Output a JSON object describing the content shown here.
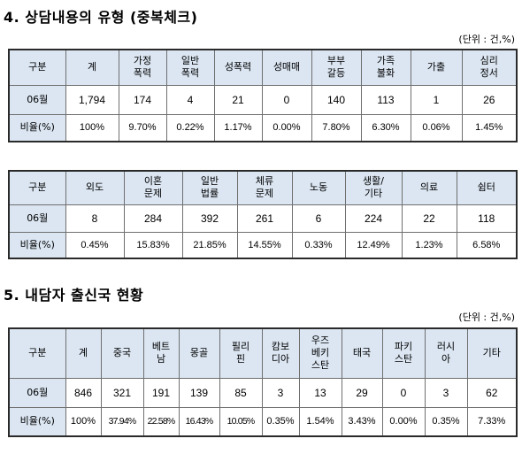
{
  "section4": {
    "title": "4. 상담내용의 유형 (중복체크)",
    "unit": "(단위 : 건,%)",
    "table1": {
      "headers": [
        "구분",
        "계",
        "가정\n폭력",
        "일반\n폭력",
        "성폭력",
        "성매매",
        "부부\n갈등",
        "가족\n불화",
        "가출",
        "심리\n정서"
      ],
      "rows": [
        [
          "06월",
          "1,794",
          "174",
          "4",
          "21",
          "0",
          "140",
          "113",
          "1",
          "26"
        ],
        [
          "비율(%)",
          "100%",
          "9.70%",
          "0.22%",
          "1.17%",
          "0.00%",
          "7.80%",
          "6.30%",
          "0.06%",
          "1.45%"
        ]
      ]
    },
    "table2": {
      "headers": [
        "구분",
        "외도",
        "이혼\n문제",
        "일반\n법률",
        "체류\n문제",
        "노동",
        "생활/\n기타",
        "의료",
        "쉼터"
      ],
      "rows": [
        [
          "06월",
          "8",
          "284",
          "392",
          "261",
          "6",
          "224",
          "22",
          "118"
        ],
        [
          "비율(%)",
          "0.45%",
          "15.83%",
          "21.85%",
          "14.55%",
          "0.33%",
          "12.49%",
          "1.23%",
          "6.58%"
        ]
      ]
    }
  },
  "section5": {
    "title": "5. 내담자 출신국 현황",
    "unit": "(단위 : 건,%)",
    "table3": {
      "headers": [
        "구분",
        "계",
        "중국",
        "베트\n남",
        "몽골",
        "필리\n핀",
        "캄보\n디아",
        "우즈\n베키\n스탄",
        "태국",
        "파키\n스탄",
        "러시\n아",
        "기타"
      ],
      "rows": [
        [
          "06월",
          "846",
          "321",
          "191",
          "139",
          "85",
          "3",
          "13",
          "29",
          "0",
          "3",
          "62"
        ],
        [
          "비율(%)",
          "100%",
          "37.94%",
          "22.58%",
          "16.43%",
          "10.05%",
          "0.35%",
          "1.54%",
          "3.43%",
          "0.00%",
          "0.35%",
          "7.33%"
        ]
      ]
    }
  }
}
